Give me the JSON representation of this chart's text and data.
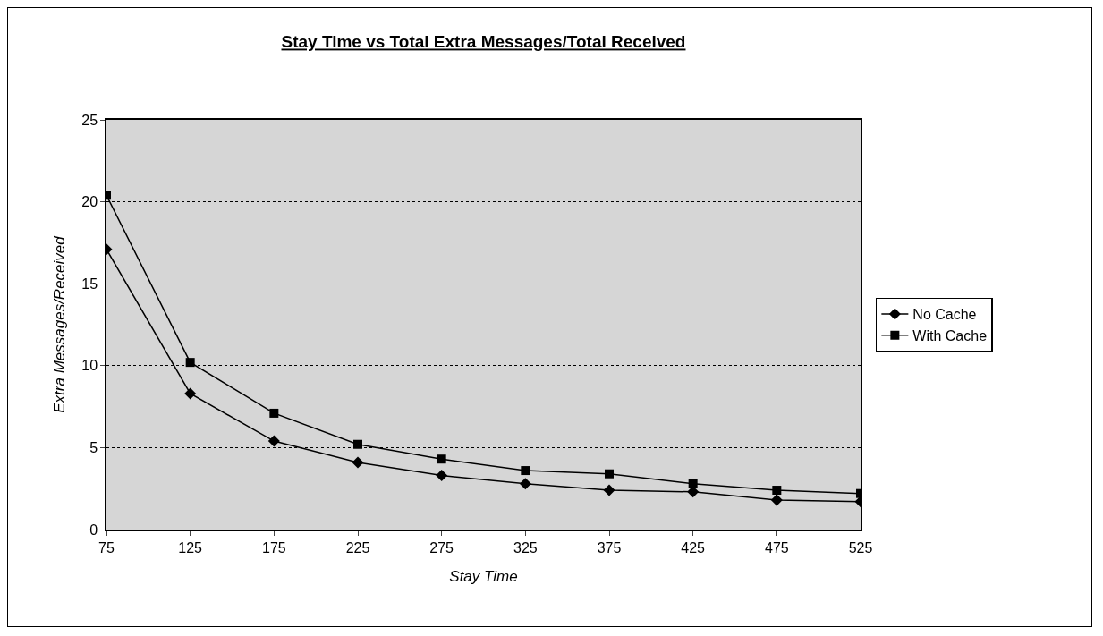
{
  "chart_data": {
    "type": "line",
    "title": "Stay Time vs Total Extra Messages/Total Received",
    "xlabel": "Stay Time",
    "ylabel": "Extra Messages/Received",
    "x": [
      75,
      125,
      175,
      225,
      275,
      325,
      375,
      425,
      475,
      525
    ],
    "series": [
      {
        "name": "No Cache",
        "color": "#000000",
        "marker": "diamond",
        "values": [
          17.1,
          8.3,
          5.4,
          4.1,
          3.3,
          2.8,
          2.4,
          2.3,
          1.8,
          1.7
        ]
      },
      {
        "name": "With Cache",
        "color": "#000000",
        "marker": "square",
        "values": [
          20.4,
          10.2,
          7.1,
          5.2,
          4.3,
          3.6,
          3.4,
          2.8,
          2.4,
          2.2
        ]
      }
    ],
    "xlim": [
      75,
      525
    ],
    "xticks": [
      75,
      125,
      175,
      225,
      275,
      325,
      375,
      425,
      475,
      525
    ],
    "ylim": [
      0,
      25
    ],
    "yticks": [
      0,
      5,
      10,
      15,
      20,
      25
    ],
    "grid": "y",
    "legend": "right",
    "line_style": "solid"
  }
}
